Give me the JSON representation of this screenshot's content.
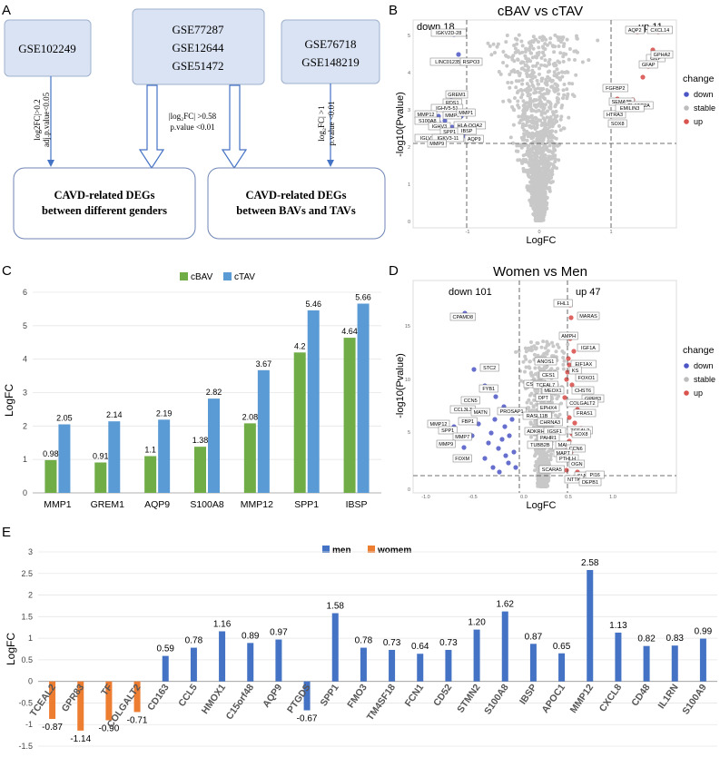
{
  "panelA": {
    "letter": "A",
    "box1": "GSE102249",
    "box2": [
      "GSE77287",
      "GSE12644",
      "GSE51472"
    ],
    "box3": [
      "GSE76718",
      "GSE148219"
    ],
    "arrow1": [
      "log2FC|>0.2",
      "adj.p.value<0.05"
    ],
    "arrow2": [
      "|log₂FC| >0.58",
      "p.value <0.01"
    ],
    "arrow3": [
      "log₂FC| >1",
      "p.value <0.01"
    ],
    "result1": [
      "CAVD-related DEGs",
      "between different genders"
    ],
    "result2": [
      "CAVD-related DEGs",
      "between BAVs and TAVs"
    ]
  },
  "panelB": {
    "letter": "B",
    "title": "cBAV vs cTAV",
    "down_label": "down 18",
    "up_label": "up 11",
    "xlabel": "LogFC",
    "ylabel": "-log10(Pvalue)",
    "legend_title": "change",
    "legend": [
      "down",
      "stable",
      "up"
    ],
    "yticks": [
      "0",
      "1",
      "2",
      "3",
      "4",
      "5"
    ],
    "xticks": [
      "-1",
      "0",
      "1"
    ],
    "down_genes": [
      "IGKV2D-28",
      "LINC01235",
      "RSPO3",
      "GREM1",
      "RDS1",
      "IGHV5-51",
      "MMP12",
      "MMP7",
      "S100A8",
      "MMP1",
      "HLA-DQA2",
      "IGHV3",
      "SPP1",
      "IBSP",
      "IGLV1-51",
      "IGKV3-11",
      "MMP9",
      "AQP9"
    ],
    "up_genes": [
      "AQP2",
      "CXCL14",
      "CILP",
      "GPHA2",
      "GFAP",
      "FGFBP2",
      "SEMA3B",
      "PLA2G2A",
      "HTRA3",
      "EMILIN3",
      "SOX8"
    ]
  },
  "panelC": {
    "letter": "C",
    "chart_data": {
      "type": "bar",
      "categories": [
        "MMP1",
        "GREM1",
        "AQP9",
        "S100A8",
        "MMP12",
        "SPP1",
        "IBSP"
      ],
      "series": [
        {
          "name": "cBAV",
          "values": [
            0.98,
            0.91,
            1.1,
            1.38,
            2.08,
            4.2,
            4.64
          ],
          "labels": [
            "0.98",
            "0.91",
            "1.1",
            "1.38",
            "2.08",
            "4.2",
            "4.64"
          ],
          "color": "#70ad47"
        },
        {
          "name": "cTAV",
          "values": [
            2.05,
            2.14,
            2.19,
            2.82,
            3.67,
            5.46,
            5.66
          ],
          "labels": [
            "2.05",
            "2.14",
            "2.19",
            "2.82",
            "3.67",
            "5.46",
            "5.66"
          ],
          "color": "#5b9bd5"
        }
      ],
      "ylabel": "LogFC",
      "ylim": [
        0,
        6
      ],
      "yticks": [
        "0",
        "1",
        "2",
        "3",
        "4",
        "5",
        "6"
      ]
    }
  },
  "panelD": {
    "letter": "D",
    "title": "Women vs Men",
    "down_label": "down 101",
    "up_label": "up 47",
    "xlabel": "LogFC",
    "ylabel": "-log10(Pvalue)",
    "legend_title": "change",
    "legend": [
      "down",
      "stable",
      "up"
    ],
    "xticks": [
      "-1.0",
      "-0.5",
      "0.0",
      "0.5",
      "1.0"
    ],
    "yticks": [
      "0",
      "5",
      "10",
      "15"
    ],
    "down_genes": [
      "CPAMD8",
      "STC2",
      "FYB1",
      "CCN5",
      "CCL3L3",
      "MATN",
      "PROSAP1",
      "FBP1",
      "MMP12",
      "SPP1",
      "MMP7",
      "MMP9",
      "FOXM"
    ],
    "up_genes": [
      "FHL1",
      "MARAS",
      "AMPH",
      "IGF1A",
      "ANOS1",
      "EIF1AX",
      "KS",
      "CES1",
      "FOXO1",
      "CSMD2",
      "TCEAL7",
      "MEOX1",
      "CHST6",
      "DPT",
      "GPR83",
      "COLGALT2",
      "EPHX4",
      "FRAS1",
      "RASL11B",
      "CHRNA3",
      "ADKRH",
      "IGSF1",
      "TCEAL2",
      "PAHR1",
      "SOX8",
      "TUBB2B",
      "MAL",
      "CCN6",
      "MAPT",
      "PTHLH",
      "OGN",
      "SCARA5",
      "SLN",
      "NTTK",
      "PI16",
      "DEPB1"
    ]
  },
  "panelE": {
    "letter": "E",
    "chart_data": {
      "type": "bar",
      "categories": [
        "TCEAL2",
        "GPR83",
        "TF",
        "COLGALT2",
        "CD163",
        "CCL5",
        "HMOX1",
        "C15orf48",
        "AQP9",
        "PTGDS",
        "SPP1",
        "FMO3",
        "TM4SF18",
        "FCN1",
        "CD52",
        "STMN2",
        "S100A8",
        "IBSP",
        "APOC1",
        "MMP12",
        "CXCL8",
        "CD48",
        "IL1RN",
        "S100A9"
      ],
      "values": [
        -0.87,
        -1.14,
        -0.9,
        -0.71,
        0.59,
        0.78,
        1.16,
        0.89,
        0.97,
        -0.67,
        1.58,
        0.78,
        0.73,
        0.64,
        0.73,
        1.2,
        1.62,
        0.87,
        0.65,
        2.58,
        1.13,
        0.82,
        0.83,
        0.99
      ],
      "labels": [
        "-0.87",
        "-1.14",
        "-0.90",
        "-0.71",
        "0.59",
        "0.78",
        "1.16",
        "0.89",
        "0.97",
        "-0.67",
        "1.58",
        "",
        "0.73",
        "0.64",
        "0.73",
        "1.20",
        "1.62",
        "0.87",
        "0.65",
        "2.58",
        "1.13",
        "0.82",
        "0.83",
        "0.99"
      ],
      "groups": [
        "womem",
        "womem",
        "womem",
        "womem",
        "men",
        "men",
        "men",
        "men",
        "men",
        "men",
        "men",
        "men",
        "men",
        "men",
        "men",
        "men",
        "men",
        "men",
        "men",
        "men",
        "men",
        "men",
        "men",
        "men"
      ],
      "fmo3_label": "0.78",
      "legend": [
        {
          "name": "men",
          "color": "#4472c4"
        },
        {
          "name": "womem",
          "color": "#ed7d31"
        }
      ],
      "ylabel": "LogFC",
      "ylim": [
        -1.5,
        3
      ],
      "yticks": [
        "-1.5",
        "-1",
        "-0.5",
        "0",
        "0.5",
        "1",
        "1.5",
        "2",
        "2.5",
        "3"
      ]
    }
  }
}
